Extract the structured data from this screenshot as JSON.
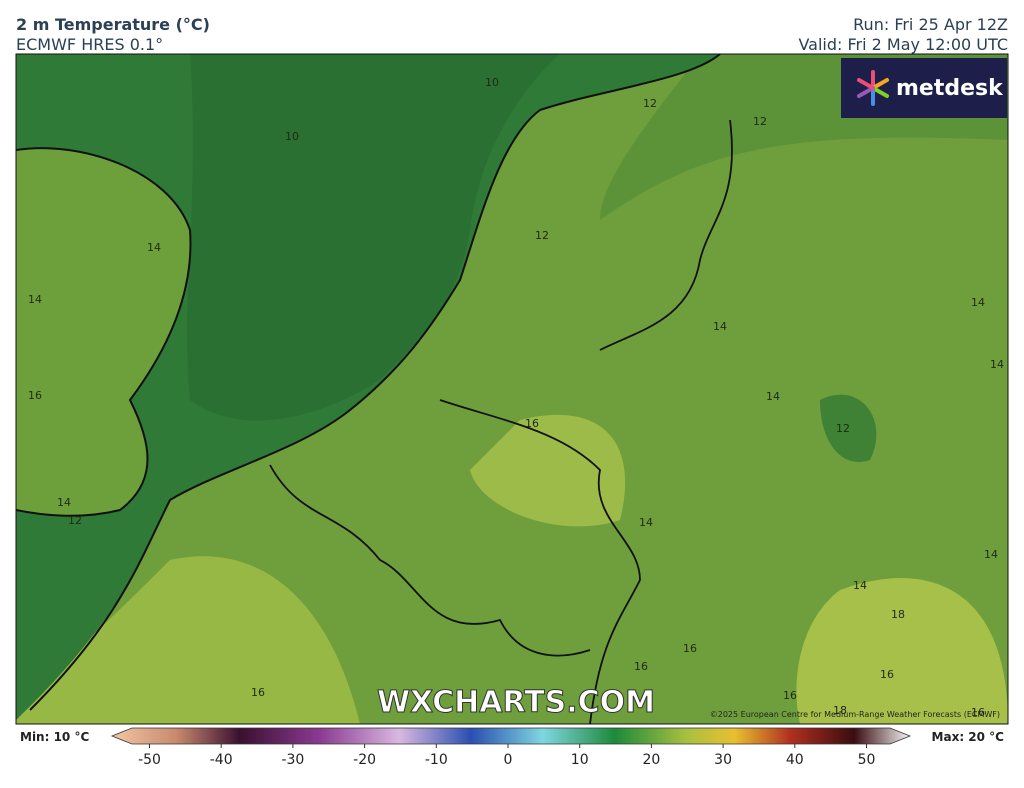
{
  "header": {
    "title": "2 m Temperature (°C)",
    "subtitle": "ECMWF HRES 0.1°",
    "run": "Run: Fri 25 Apr 12Z",
    "valid": "Valid: Fri 2 May 12:00 UTC"
  },
  "logo": "metdesk",
  "watermark": "WXCHARTS.COM",
  "copyright": "©2025 European Centre for Medium-Range Weather Forecasts (ECMWF)",
  "contour_labels": [
    "10",
    "12",
    "12",
    "10",
    "14",
    "12",
    "14",
    "14",
    "14",
    "14",
    "16",
    "14",
    "16",
    "12",
    "14",
    "12",
    "14",
    "14",
    "14",
    "18",
    "16",
    "16",
    "16",
    "16",
    "16",
    "18",
    "16"
  ],
  "colorbar": {
    "min_label": "Min: 10 °C",
    "max_label": "Max: 20 °C",
    "ticks": [
      -50,
      -40,
      -30,
      -20,
      -10,
      0,
      10,
      20,
      30,
      40,
      50
    ]
  }
}
